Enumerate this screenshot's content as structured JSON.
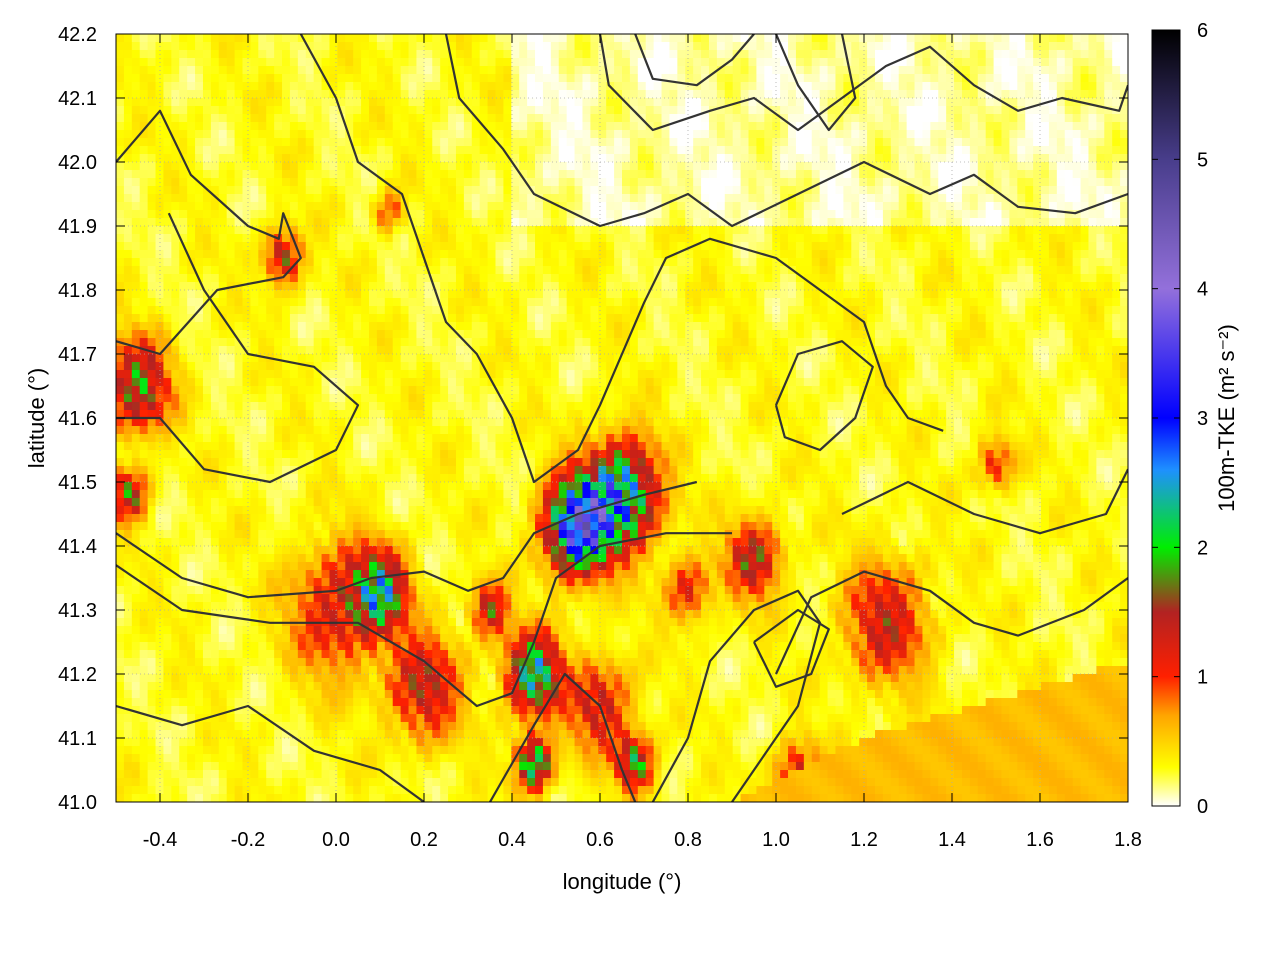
{
  "chart_data": {
    "type": "heatmap",
    "title": "",
    "xlabel": "longitude (°)",
    "ylabel": "latitude (°)",
    "colorbar_label": "100m-TKE (m² s⁻²)",
    "xlim": [
      -0.5,
      1.8
    ],
    "ylim": [
      41.0,
      42.2
    ],
    "zlim": [
      0,
      6
    ],
    "grid": true,
    "x_ticks": [
      -0.4,
      -0.2,
      0.0,
      0.2,
      0.4,
      0.6,
      0.8,
      1.0,
      1.2,
      1.4,
      1.6,
      1.8
    ],
    "x_tick_labels": [
      "-0.4",
      "-0.2",
      "0.0",
      "0.2",
      "0.4",
      "0.6",
      "0.8",
      "1.0",
      "1.2",
      "1.4",
      "1.6",
      "1.8"
    ],
    "y_ticks": [
      41.0,
      41.1,
      41.2,
      41.3,
      41.4,
      41.5,
      41.6,
      41.7,
      41.8,
      41.9,
      42.0,
      42.1,
      42.2
    ],
    "y_tick_labels": [
      "41.0",
      "41.1",
      "41.2",
      "41.3",
      "41.4",
      "41.5",
      "41.6",
      "41.7",
      "41.8",
      "41.9",
      "42.0",
      "42.1",
      "42.2"
    ],
    "colorbar_ticks": [
      0,
      1,
      2,
      3,
      4,
      5,
      6
    ],
    "colorbar_tick_labels": [
      "0",
      "1",
      "2",
      "3",
      "4",
      "5",
      "6"
    ],
    "colormap": [
      {
        "value": 0,
        "color": "#ffffff"
      },
      {
        "value": 0.3,
        "color": "#ffff00"
      },
      {
        "value": 0.7,
        "color": "#ffa500"
      },
      {
        "value": 1.0,
        "color": "#ff2000"
      },
      {
        "value": 1.5,
        "color": "#b22222"
      },
      {
        "value": 2.0,
        "color": "#00ee00"
      },
      {
        "value": 2.6,
        "color": "#1e90ff"
      },
      {
        "value": 3.0,
        "color": "#0000ff"
      },
      {
        "value": 4.0,
        "color": "#9370db"
      },
      {
        "value": 5.0,
        "color": "#483d8b"
      },
      {
        "value": 6.0,
        "color": "#000000"
      }
    ],
    "hotspots": [
      {
        "lon": 0.55,
        "lat": 41.43,
        "tke": 3.8,
        "r": 0.07
      },
      {
        "lon": 0.65,
        "lat": 41.48,
        "tke": 2.8,
        "r": 0.08
      },
      {
        "lon": 0.1,
        "lat": 41.33,
        "tke": 2.2,
        "r": 0.06
      },
      {
        "lon": 0.45,
        "lat": 41.2,
        "tke": 2.5,
        "r": 0.06
      },
      {
        "lon": 0.45,
        "lat": 41.06,
        "tke": 2.4,
        "r": 0.04
      },
      {
        "lon": 0.68,
        "lat": 41.06,
        "tke": 2.0,
        "r": 0.04
      },
      {
        "lon": -0.45,
        "lat": 41.65,
        "tke": 1.8,
        "r": 0.07
      },
      {
        "lon": -0.47,
        "lat": 41.48,
        "tke": 1.6,
        "r": 0.04
      },
      {
        "lon": -0.12,
        "lat": 41.85,
        "tke": 1.6,
        "r": 0.04
      },
      {
        "lon": 0.95,
        "lat": 41.38,
        "tke": 1.5,
        "r": 0.06
      },
      {
        "lon": 1.25,
        "lat": 41.28,
        "tke": 1.3,
        "r": 0.09
      },
      {
        "lon": 1.05,
        "lat": 41.04,
        "tke": 1.2,
        "r": 0.05
      },
      {
        "lon": 0.2,
        "lat": 41.18,
        "tke": 1.4,
        "r": 0.08
      },
      {
        "lon": 0.0,
        "lat": 41.3,
        "tke": 1.2,
        "r": 0.1
      },
      {
        "lon": 0.6,
        "lat": 41.15,
        "tke": 1.3,
        "r": 0.07
      },
      {
        "lon": 0.35,
        "lat": 41.3,
        "tke": 1.5,
        "r": 0.04
      },
      {
        "lon": 1.5,
        "lat": 41.53,
        "tke": 1.0,
        "r": 0.04
      },
      {
        "lon": 0.12,
        "lat": 41.92,
        "tke": 0.9,
        "r": 0.03
      },
      {
        "lon": 0.8,
        "lat": 41.33,
        "tke": 1.1,
        "r": 0.05
      }
    ],
    "sea_region": {
      "tke": 0.6,
      "coast": [
        [
          0.9,
          41.0
        ],
        [
          1.2,
          41.1
        ],
        [
          1.45,
          41.15
        ],
        [
          1.8,
          41.22
        ]
      ]
    },
    "contours": [
      [
        [
          -0.5,
          42.0
        ],
        [
          -0.4,
          42.08
        ],
        [
          -0.33,
          41.98
        ],
        [
          -0.2,
          41.9
        ],
        [
          -0.13,
          41.88
        ],
        [
          -0.12,
          41.92
        ],
        [
          -0.08,
          41.85
        ],
        [
          -0.12,
          41.82
        ],
        [
          -0.27,
          41.8
        ],
        [
          -0.4,
          41.7
        ],
        [
          -0.5,
          41.72
        ]
      ],
      [
        [
          -0.38,
          41.92
        ],
        [
          -0.3,
          41.8
        ],
        [
          -0.2,
          41.7
        ],
        [
          -0.05,
          41.68
        ],
        [
          0.05,
          41.62
        ],
        [
          0.0,
          41.55
        ],
        [
          -0.15,
          41.5
        ],
        [
          -0.3,
          41.52
        ],
        [
          -0.4,
          41.6
        ],
        [
          -0.5,
          41.6
        ]
      ],
      [
        [
          -0.5,
          41.42
        ],
        [
          -0.35,
          41.35
        ],
        [
          -0.2,
          41.32
        ],
        [
          0.0,
          41.33
        ],
        [
          0.08,
          41.35
        ],
        [
          0.2,
          41.36
        ],
        [
          0.3,
          41.33
        ],
        [
          0.38,
          41.35
        ],
        [
          0.45,
          41.42
        ],
        [
          0.55,
          41.45
        ],
        [
          0.7,
          41.48
        ],
        [
          0.82,
          41.5
        ]
      ],
      [
        [
          -0.5,
          41.37
        ],
        [
          -0.35,
          41.3
        ],
        [
          -0.15,
          41.28
        ],
        [
          0.05,
          41.28
        ],
        [
          0.2,
          41.22
        ],
        [
          0.32,
          41.15
        ],
        [
          0.4,
          41.17
        ],
        [
          0.45,
          41.25
        ],
        [
          0.5,
          41.35
        ],
        [
          0.6,
          41.4
        ],
        [
          0.75,
          41.42
        ],
        [
          0.9,
          41.42
        ]
      ],
      [
        [
          -0.5,
          41.15
        ],
        [
          -0.35,
          41.12
        ],
        [
          -0.2,
          41.15
        ],
        [
          -0.05,
          41.08
        ],
        [
          0.1,
          41.05
        ],
        [
          0.2,
          41.0
        ]
      ],
      [
        [
          0.35,
          41.0
        ],
        [
          0.45,
          41.12
        ],
        [
          0.52,
          41.2
        ],
        [
          0.6,
          41.15
        ],
        [
          0.65,
          41.05
        ],
        [
          0.68,
          41.0
        ]
      ],
      [
        [
          0.72,
          41.0
        ],
        [
          0.8,
          41.1
        ],
        [
          0.85,
          41.22
        ],
        [
          0.95,
          41.3
        ],
        [
          1.05,
          41.33
        ],
        [
          1.1,
          41.28
        ],
        [
          1.05,
          41.15
        ],
        [
          0.95,
          41.05
        ],
        [
          0.9,
          41.0
        ]
      ],
      [
        [
          1.0,
          41.2
        ],
        [
          1.08,
          41.32
        ],
        [
          1.2,
          41.36
        ],
        [
          1.35,
          41.33
        ],
        [
          1.45,
          41.28
        ],
        [
          1.55,
          41.26
        ],
        [
          1.7,
          41.3
        ],
        [
          1.8,
          41.35
        ]
      ],
      [
        [
          1.15,
          41.45
        ],
        [
          1.3,
          41.5
        ],
        [
          1.45,
          41.45
        ],
        [
          1.6,
          41.42
        ],
        [
          1.75,
          41.45
        ],
        [
          1.8,
          41.52
        ]
      ],
      [
        [
          -0.08,
          42.2
        ],
        [
          0.0,
          42.1
        ],
        [
          0.05,
          42.0
        ],
        [
          0.15,
          41.95
        ],
        [
          0.2,
          41.85
        ],
        [
          0.25,
          41.75
        ],
        [
          0.32,
          41.7
        ],
        [
          0.4,
          41.6
        ],
        [
          0.45,
          41.5
        ],
        [
          0.55,
          41.55
        ],
        [
          0.6,
          41.62
        ],
        [
          0.65,
          41.7
        ],
        [
          0.7,
          41.78
        ],
        [
          0.75,
          41.85
        ],
        [
          0.85,
          41.88
        ],
        [
          1.0,
          41.85
        ],
        [
          1.1,
          41.8
        ],
        [
          1.2,
          41.75
        ],
        [
          1.25,
          41.65
        ],
        [
          1.3,
          41.6
        ],
        [
          1.38,
          41.58
        ]
      ],
      [
        [
          0.25,
          42.2
        ],
        [
          0.28,
          42.1
        ],
        [
          0.38,
          42.02
        ],
        [
          0.45,
          41.95
        ],
        [
          0.6,
          41.9
        ],
        [
          0.7,
          41.92
        ],
        [
          0.8,
          41.95
        ],
        [
          0.9,
          41.9
        ],
        [
          1.05,
          41.95
        ],
        [
          1.2,
          42.0
        ],
        [
          1.35,
          41.95
        ],
        [
          1.45,
          41.98
        ],
        [
          1.55,
          41.93
        ],
        [
          1.68,
          41.92
        ],
        [
          1.8,
          41.95
        ]
      ],
      [
        [
          0.6,
          42.2
        ],
        [
          0.62,
          42.12
        ],
        [
          0.72,
          42.05
        ],
        [
          0.85,
          42.08
        ],
        [
          0.95,
          42.1
        ],
        [
          1.05,
          42.05
        ],
        [
          1.15,
          42.1
        ],
        [
          1.25,
          42.15
        ],
        [
          1.35,
          42.18
        ],
        [
          1.45,
          42.12
        ],
        [
          1.55,
          42.08
        ],
        [
          1.65,
          42.1
        ],
        [
          1.78,
          42.08
        ],
        [
          1.8,
          42.12
        ]
      ],
      [
        [
          0.68,
          42.2
        ],
        [
          0.72,
          42.13
        ],
        [
          0.82,
          42.12
        ],
        [
          0.9,
          42.16
        ],
        [
          0.95,
          42.2
        ]
      ],
      [
        [
          1.0,
          42.2
        ],
        [
          1.05,
          42.12
        ],
        [
          1.12,
          42.05
        ],
        [
          1.18,
          42.1
        ],
        [
          1.15,
          42.2
        ]
      ],
      [
        [
          1.0,
          41.62
        ],
        [
          1.05,
          41.7
        ],
        [
          1.15,
          41.72
        ],
        [
          1.22,
          41.68
        ],
        [
          1.18,
          41.6
        ],
        [
          1.1,
          41.55
        ],
        [
          1.02,
          41.57
        ],
        [
          1.0,
          41.62
        ]
      ],
      [
        [
          0.95,
          41.25
        ],
        [
          1.05,
          41.3
        ],
        [
          1.12,
          41.27
        ],
        [
          1.08,
          41.2
        ],
        [
          1.0,
          41.18
        ],
        [
          0.95,
          41.25
        ]
      ]
    ]
  }
}
